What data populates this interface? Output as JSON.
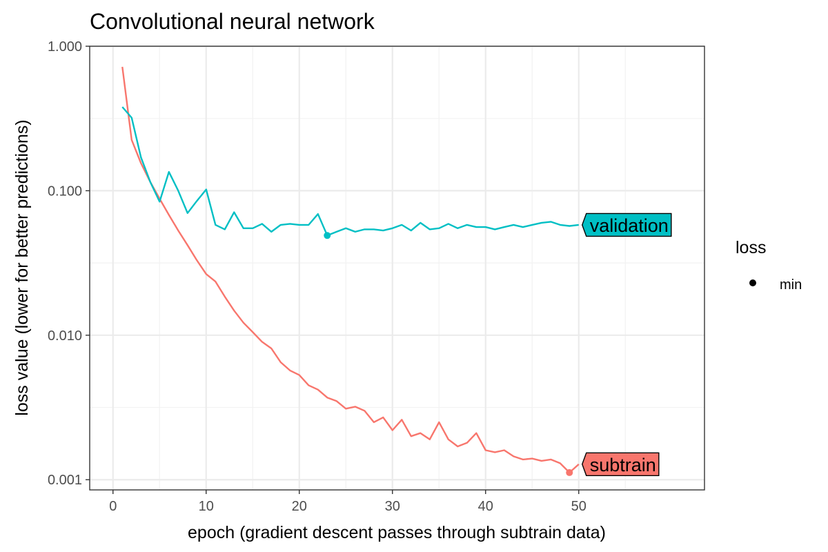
{
  "chart_data": {
    "type": "line",
    "title": "Convolutional neural network",
    "xlabel": "epoch (gradient descent passes through subtrain data)",
    "ylabel": "loss value (lower for better predictions)",
    "xlim": [
      -2.5,
      63.5
    ],
    "ylim": [
      0.00085,
      1.0
    ],
    "yscale": "log",
    "x_ticks": [
      0,
      10,
      20,
      30,
      40,
      50
    ],
    "x_tick_labels": [
      "0",
      "10",
      "20",
      "30",
      "40",
      "50"
    ],
    "y_ticks": [
      0.001,
      0.01,
      0.1,
      1.0
    ],
    "y_tick_labels": [
      "0.001",
      "0.010",
      "0.100",
      "1.000"
    ],
    "grid": true,
    "legend": {
      "title": "loss",
      "items": [
        {
          "label": "min",
          "marker": "point"
        }
      ],
      "position": "right"
    },
    "series": [
      {
        "name": "subtrain",
        "color": "#F8766D",
        "x": [
          1,
          2,
          3,
          4,
          5,
          6,
          7,
          8,
          9,
          10,
          11,
          12,
          13,
          14,
          15,
          16,
          17,
          18,
          19,
          20,
          21,
          22,
          23,
          24,
          25,
          26,
          27,
          28,
          29,
          30,
          31,
          32,
          33,
          34,
          35,
          36,
          37,
          38,
          39,
          40,
          41,
          42,
          43,
          44,
          45,
          46,
          47,
          48,
          49,
          50
        ],
        "values": [
          0.72,
          0.225,
          0.155,
          0.115,
          0.088,
          0.068,
          0.053,
          0.042,
          0.033,
          0.0265,
          0.0235,
          0.0185,
          0.0148,
          0.0122,
          0.0105,
          0.009,
          0.0081,
          0.0065,
          0.0057,
          0.0053,
          0.0045,
          0.0042,
          0.0037,
          0.0035,
          0.0031,
          0.0032,
          0.003,
          0.0025,
          0.0027,
          0.0022,
          0.0026,
          0.002,
          0.0021,
          0.0019,
          0.0025,
          0.0019,
          0.0017,
          0.0018,
          0.0021,
          0.0016,
          0.00155,
          0.0016,
          0.00145,
          0.00138,
          0.0014,
          0.00135,
          0.00138,
          0.0013,
          0.00112,
          0.00128
        ],
        "min": {
          "x": 49,
          "value": 0.00112
        },
        "end_label": "subtrain"
      },
      {
        "name": "validation",
        "color": "#00BFC4",
        "x": [
          1,
          2,
          3,
          4,
          5,
          6,
          7,
          8,
          9,
          10,
          11,
          12,
          13,
          14,
          15,
          16,
          17,
          18,
          19,
          20,
          21,
          22,
          23,
          24,
          25,
          26,
          27,
          28,
          29,
          30,
          31,
          32,
          33,
          34,
          35,
          36,
          37,
          38,
          39,
          40,
          41,
          42,
          43,
          44,
          45,
          46,
          47,
          48,
          49,
          50
        ],
        "values": [
          0.38,
          0.32,
          0.17,
          0.115,
          0.084,
          0.135,
          0.1,
          0.07,
          0.085,
          0.102,
          0.058,
          0.054,
          0.071,
          0.055,
          0.055,
          0.059,
          0.052,
          0.058,
          0.059,
          0.058,
          0.058,
          0.069,
          0.049,
          0.052,
          0.055,
          0.052,
          0.054,
          0.054,
          0.053,
          0.055,
          0.058,
          0.053,
          0.06,
          0.054,
          0.055,
          0.059,
          0.055,
          0.058,
          0.056,
          0.056,
          0.054,
          0.056,
          0.058,
          0.056,
          0.058,
          0.06,
          0.061,
          0.058,
          0.057,
          0.058
        ],
        "min": {
          "x": 23,
          "value": 0.049
        },
        "end_label": "validation"
      }
    ]
  }
}
